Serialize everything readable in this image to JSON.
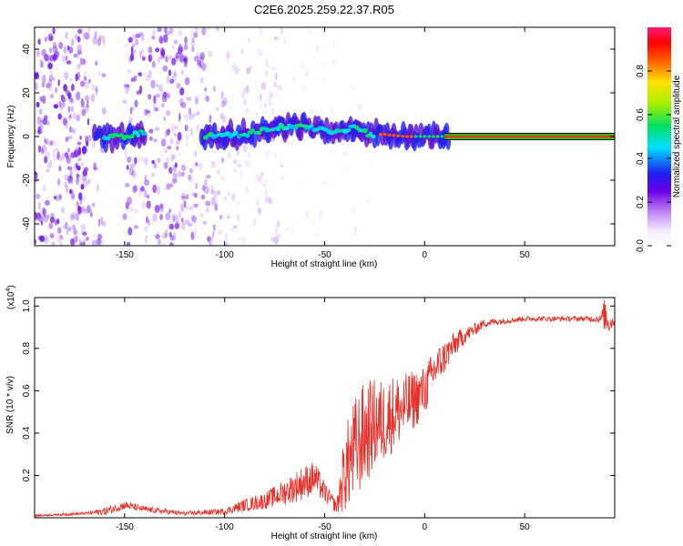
{
  "figure_title": "C2E6.2025.259.22.37.R05",
  "colors": {
    "snr_line": "#e8302a",
    "ridge_core": "#e03a2a",
    "ridge_edge": "#00e000",
    "background": "#ffffff",
    "axis": "#000000"
  },
  "chart_data": [
    {
      "type": "heatmap",
      "name": "spectrogram",
      "xlabel": "Height of straight line (km)",
      "ylabel": "Frequency (Hz)",
      "xlim": [
        -195,
        95
      ],
      "ylim": [
        -50,
        50
      ],
      "xticks": [
        -150,
        -100,
        -50,
        0,
        50
      ],
      "xtick_labels": [
        "-150",
        "-100",
        "-50",
        "0",
        "50"
      ],
      "yticks": [
        -40,
        -20,
        0,
        20,
        40
      ],
      "ytick_labels": [
        "-40",
        "-20",
        "0",
        "20",
        "40"
      ],
      "ridge": {
        "x": [
          -165,
          -150,
          -140,
          -110,
          -90,
          -75,
          -60,
          -45,
          -35,
          -28,
          -20,
          -10,
          0,
          10,
          20,
          95
        ],
        "y": [
          0,
          0,
          2,
          0,
          1,
          4,
          5,
          2,
          4,
          1,
          1,
          0,
          0,
          0,
          0,
          0
        ]
      },
      "colorbar": {
        "label": "Normalized spectral amplitude",
        "range": [
          0,
          1
        ],
        "ticks": [
          0.0,
          0.2,
          0.4,
          0.6,
          0.8
        ],
        "tick_labels": [
          "0.0",
          "0.2",
          "0.4",
          "0.6",
          "0.8"
        ]
      }
    },
    {
      "type": "line",
      "name": "snr",
      "xlabel": "Height of straight line (km)",
      "ylabel": "SNR (10 * v/v)",
      "scale_label": "(x10",
      "scale_exponent": "4",
      "scale_close": ")",
      "xlim": [
        -195,
        95
      ],
      "ylim": [
        0,
        1.04
      ],
      "xticks": [
        -150,
        -100,
        -50,
        0,
        50
      ],
      "xtick_labels": [
        "-150",
        "-100",
        "-50",
        "0",
        "50"
      ],
      "yticks": [
        0.2,
        0.4,
        0.6,
        0.8,
        1.0
      ],
      "ytick_labels": [
        "0.2",
        "0.4",
        "0.6",
        "0.8",
        "1.0"
      ],
      "series": [
        {
          "name": "SNR",
          "x": [
            -195,
            -170,
            -160,
            -150,
            -140,
            -120,
            -100,
            -90,
            -80,
            -70,
            -62,
            -55,
            -50,
            -44,
            -40,
            -35,
            -30,
            -25,
            -20,
            -15,
            -10,
            -5,
            0,
            5,
            10,
            15,
            20,
            25,
            30,
            40,
            50,
            60,
            70,
            80,
            88,
            90,
            92,
            95
          ],
          "y": [
            0.01,
            0.02,
            0.03,
            0.06,
            0.04,
            0.02,
            0.03,
            0.06,
            0.08,
            0.12,
            0.16,
            0.19,
            0.12,
            0.05,
            0.22,
            0.32,
            0.4,
            0.44,
            0.46,
            0.5,
            0.52,
            0.56,
            0.6,
            0.7,
            0.76,
            0.82,
            0.86,
            0.89,
            0.92,
            0.93,
            0.94,
            0.94,
            0.94,
            0.94,
            0.94,
            0.96,
            0.92,
            0.93
          ],
          "amp": [
            0.005,
            0.006,
            0.02,
            0.02,
            0.015,
            0.01,
            0.015,
            0.03,
            0.04,
            0.06,
            0.08,
            0.08,
            0.05,
            0.03,
            0.2,
            0.25,
            0.25,
            0.22,
            0.2,
            0.18,
            0.16,
            0.14,
            0.12,
            0.1,
            0.08,
            0.06,
            0.04,
            0.03,
            0.02,
            0.015,
            0.012,
            0.012,
            0.012,
            0.012,
            0.02,
            0.08,
            0.05,
            0.02
          ]
        }
      ]
    }
  ]
}
